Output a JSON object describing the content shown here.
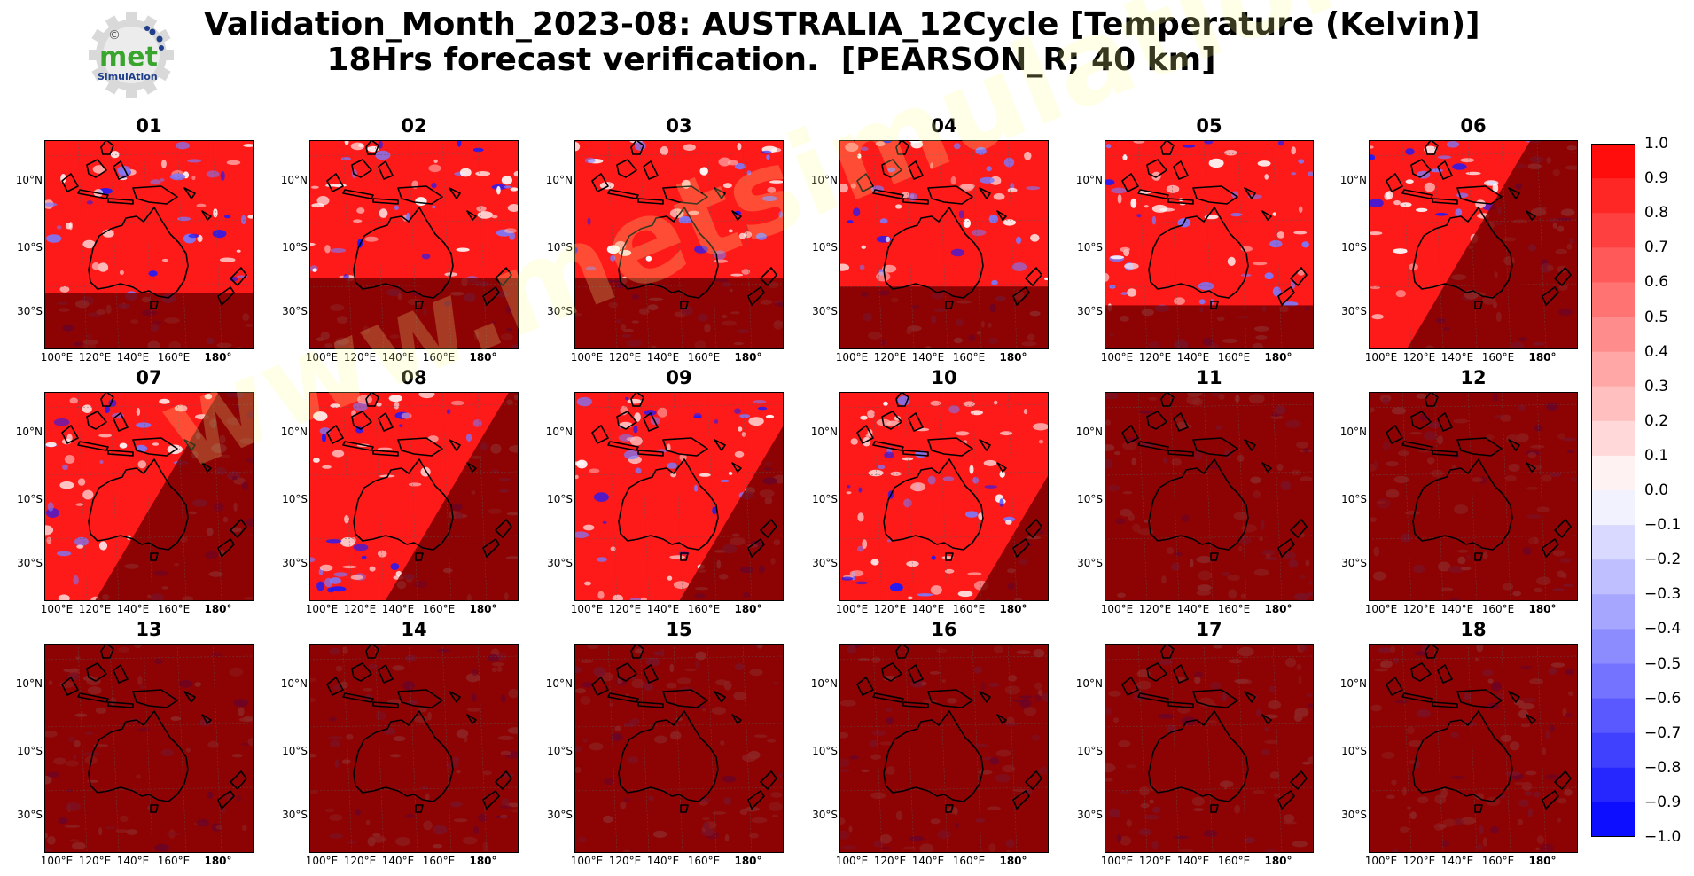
{
  "header": {
    "title_line1": "Validation_Month_2023-08: AUSTRALIA_12Cycle [Temperature (Kelvin)]",
    "title_line2": "18Hrs forecast verification.  [PEARSON_R; 40 km]"
  },
  "logo": {
    "text": "met",
    "subtext": "SimulAtion",
    "symbol": "©"
  },
  "watermark": "www.metsimulation.com",
  "axes": {
    "y_ticks": [
      "10°N",
      "10°S",
      "30°S"
    ],
    "x_ticks": [
      "100°E",
      "120°E",
      "140°E",
      "160°E",
      "180°"
    ]
  },
  "panels": [
    {
      "label": "01",
      "dark": "south",
      "cut": 0.73
    },
    {
      "label": "02",
      "dark": "south",
      "cut": 0.66
    },
    {
      "label": "03",
      "dark": "south",
      "cut": 0.66
    },
    {
      "label": "04",
      "dark": "south",
      "cut": 0.7
    },
    {
      "label": "05",
      "dark": "south",
      "cut": 0.79
    },
    {
      "label": "06",
      "dark": "diag",
      "cut": 0.48
    },
    {
      "label": "07",
      "dark": "diag",
      "cut": 0.42
    },
    {
      "label": "08",
      "dark": "diag",
      "cut": 0.3
    },
    {
      "label": "09",
      "dark": "diag",
      "cut": 0.16
    },
    {
      "label": "10",
      "dark": "diag",
      "cut": 0.02
    },
    {
      "label": "11",
      "dark": "full",
      "cut": 0
    },
    {
      "label": "12",
      "dark": "full",
      "cut": 0
    },
    {
      "label": "13",
      "dark": "full",
      "cut": 0
    },
    {
      "label": "14",
      "dark": "full",
      "cut": 0
    },
    {
      "label": "15",
      "dark": "full",
      "cut": 0
    },
    {
      "label": "16",
      "dark": "full",
      "cut": 0
    },
    {
      "label": "17",
      "dark": "full",
      "cut": 0
    },
    {
      "label": "18",
      "dark": "full",
      "cut": 0
    }
  ],
  "colorbar": {
    "min": -1.0,
    "max": 1.0,
    "step": 0.1,
    "labels": [
      "1.0",
      "0.9",
      "0.8",
      "0.7",
      "0.6",
      "0.5",
      "0.4",
      "0.3",
      "0.2",
      "0.1",
      "0.0",
      "−0.1",
      "−0.2",
      "−0.3",
      "−0.4",
      "−0.5",
      "−0.6",
      "−0.7",
      "−0.8",
      "−0.9",
      "−1.0"
    ],
    "high_color": "#ff0000",
    "low_color": "#0000ff",
    "mid_color": "#ffffff"
  },
  "colors": {
    "land_outline": "#000000",
    "masked_area": "#7a0000",
    "field_red": "#ff1a1a"
  }
}
